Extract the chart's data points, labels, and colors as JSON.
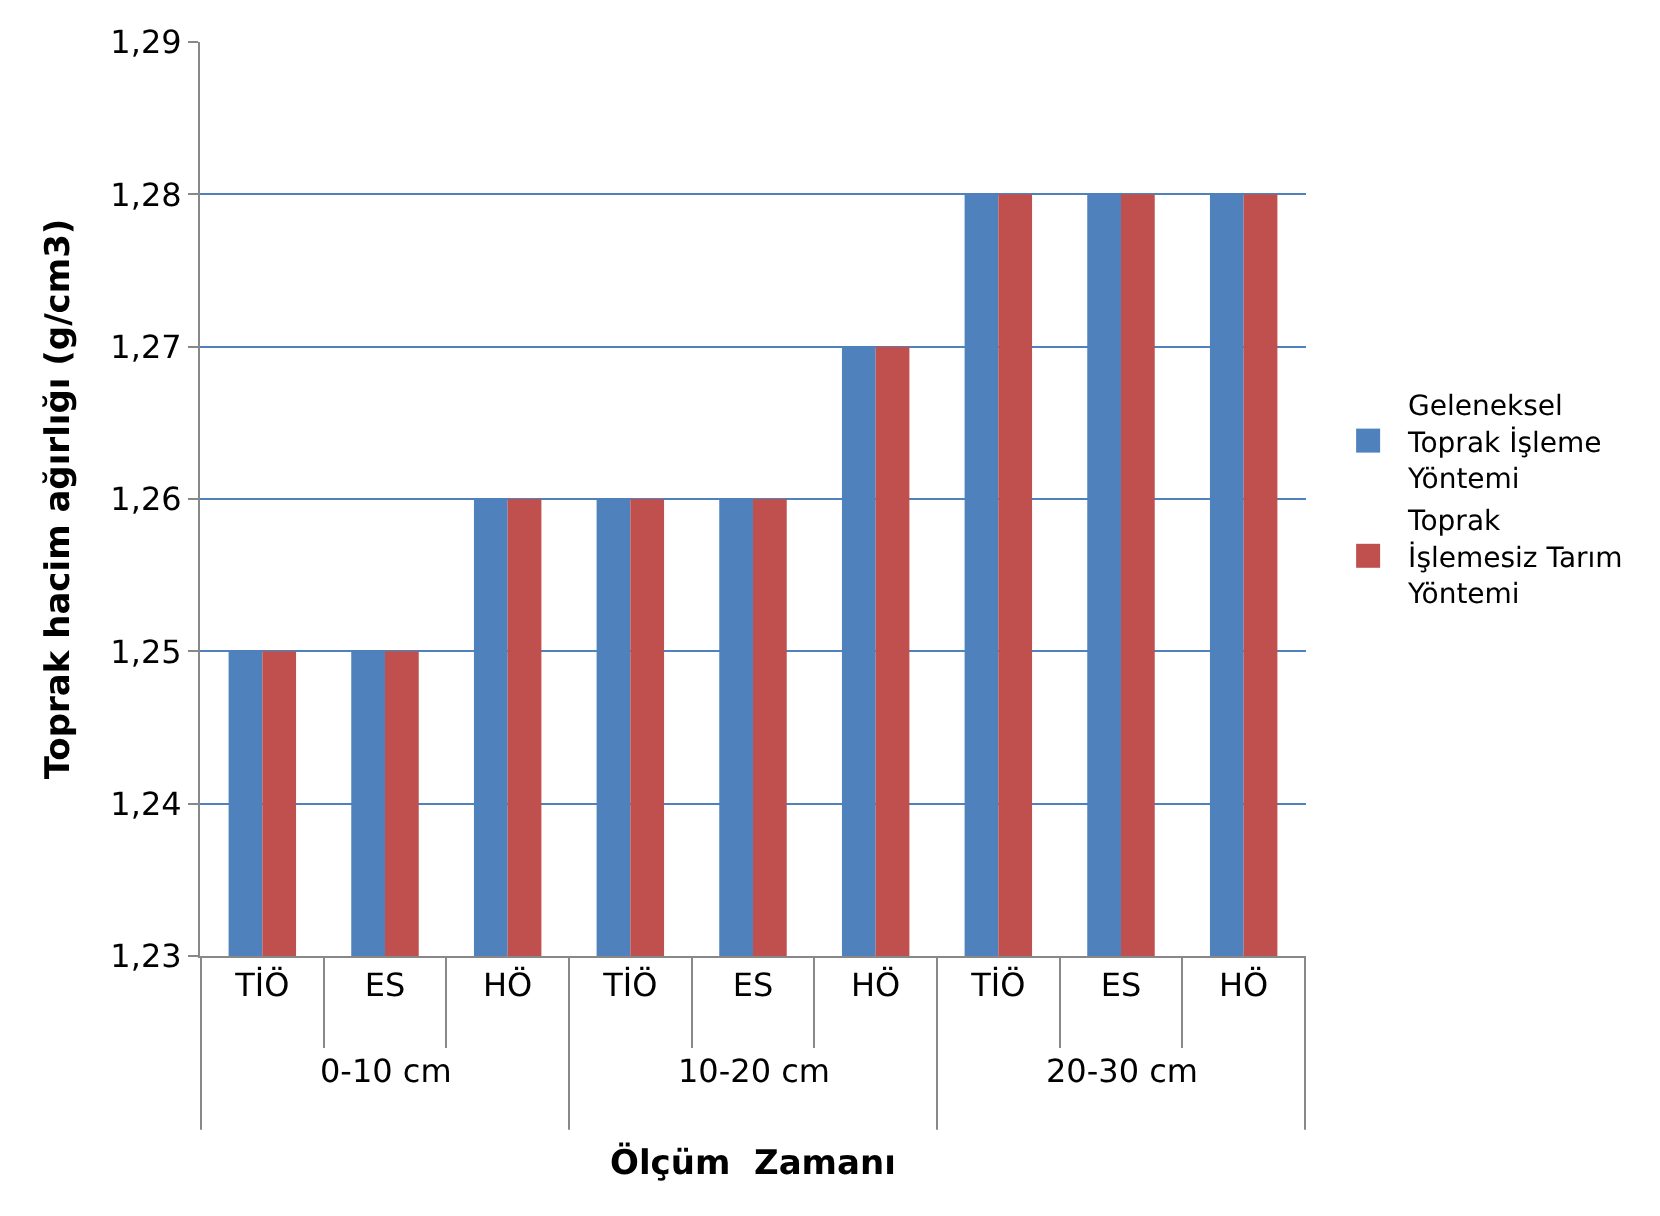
{
  "chart_data": {
    "type": "bar",
    "xlabel": "Ölçüm  Zamanı",
    "ylabel": "Toprak hacim ağırlığı (g/cm3)",
    "categories": [
      "TİÖ",
      "ES",
      "HÖ",
      "TİÖ",
      "ES",
      "HÖ",
      "TİÖ",
      "ES",
      "HÖ"
    ],
    "series": [
      {
        "name": "Geleneksel Toprak İşleme Yöntemi",
        "color": "#4f81bd",
        "values": [
          1.25,
          1.25,
          1.26,
          1.26,
          1.26,
          1.27,
          1.28,
          1.28,
          1.28
        ]
      },
      {
        "name": "Toprak İşlemesiz Tarım Yöntemi",
        "color": "#c0504d",
        "values": [
          1.25,
          1.25,
          1.26,
          1.26,
          1.26,
          1.27,
          1.28,
          1.28,
          1.28
        ]
      }
    ],
    "annotations": [
      "0-10 cm",
      "10-20 cm",
      "20-30 cm"
    ],
    "ylim": [
      1.23,
      1.29
    ],
    "yticks": [
      {
        "value": 1.23,
        "label": "1,23"
      },
      {
        "value": 1.24,
        "label": "1,24"
      },
      {
        "value": 1.25,
        "label": "1,25"
      },
      {
        "value": 1.26,
        "label": "1,26"
      },
      {
        "value": 1.27,
        "label": "1,27"
      },
      {
        "value": 1.28,
        "label": "1,28"
      },
      {
        "value": 1.29,
        "label": "1,29"
      }
    ],
    "grid": "y",
    "legend": "right"
  }
}
